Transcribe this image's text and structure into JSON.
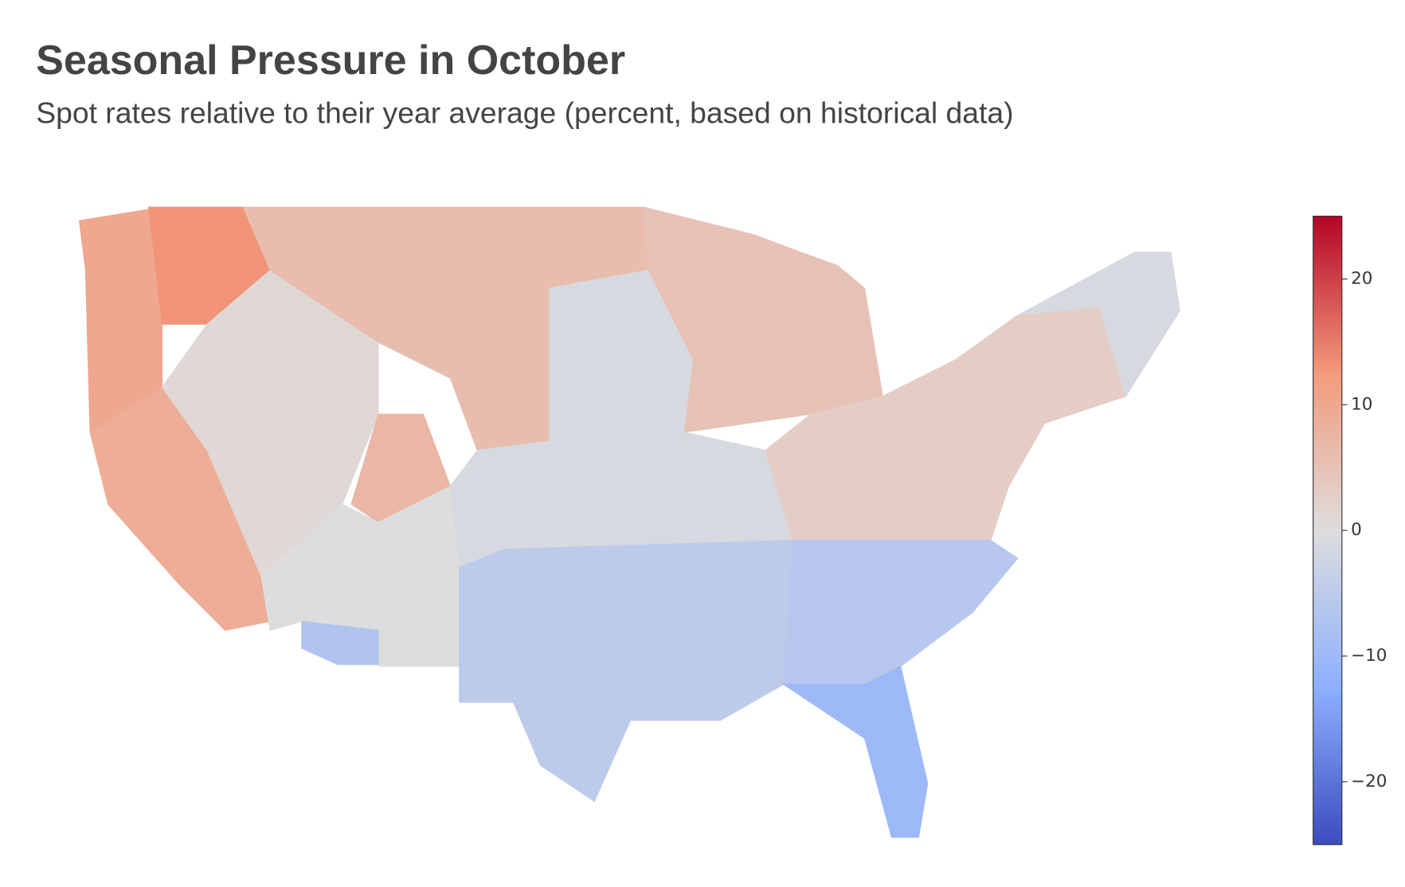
{
  "chart_data": {
    "type": "choropleth",
    "title": "Seasonal Pressure in October",
    "subtitle": "Spot rates relative to their year average (percent, based on historical data)",
    "values": [
      10,
      13,
      9,
      1,
      6,
      7,
      0,
      -7,
      -1,
      5,
      3,
      -1,
      -5,
      -6,
      -10
    ],
    "colorscale": [
      "#3b4cc0",
      "#8db0fe",
      "#dddddd",
      "#f49a7b",
      "#b40426"
    ],
    "clim": [
      -25,
      25
    ],
    "cticks": [
      20,
      10,
      0,
      {
        "value": -10,
        "label": "−10"
      },
      {
        "value": -20,
        "label": "−20"
      }
    ]
  }
}
